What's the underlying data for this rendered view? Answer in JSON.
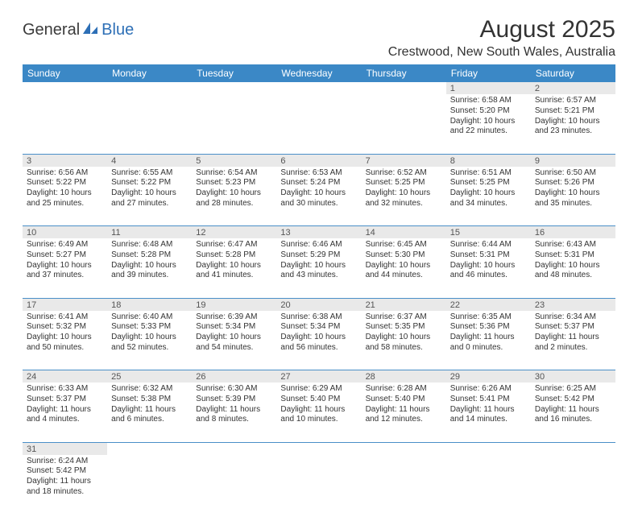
{
  "logo": {
    "part1": "General",
    "part2": "Blue"
  },
  "title": "August 2025",
  "location": "Crestwood, New South Wales, Australia",
  "colors": {
    "header_bg": "#3b88c6",
    "header_fg": "#ffffff",
    "row_rule": "#4a8fc8",
    "daynum_bg": "#e9e9e9",
    "logo_blue": "#2d6fb6"
  },
  "weekdays": [
    "Sunday",
    "Monday",
    "Tuesday",
    "Wednesday",
    "Thursday",
    "Friday",
    "Saturday"
  ],
  "weeks": [
    [
      null,
      null,
      null,
      null,
      null,
      {
        "n": "1",
        "sr": "Sunrise: 6:58 AM",
        "ss": "Sunset: 5:20 PM",
        "d1": "Daylight: 10 hours",
        "d2": "and 22 minutes."
      },
      {
        "n": "2",
        "sr": "Sunrise: 6:57 AM",
        "ss": "Sunset: 5:21 PM",
        "d1": "Daylight: 10 hours",
        "d2": "and 23 minutes."
      }
    ],
    [
      {
        "n": "3",
        "sr": "Sunrise: 6:56 AM",
        "ss": "Sunset: 5:22 PM",
        "d1": "Daylight: 10 hours",
        "d2": "and 25 minutes."
      },
      {
        "n": "4",
        "sr": "Sunrise: 6:55 AM",
        "ss": "Sunset: 5:22 PM",
        "d1": "Daylight: 10 hours",
        "d2": "and 27 minutes."
      },
      {
        "n": "5",
        "sr": "Sunrise: 6:54 AM",
        "ss": "Sunset: 5:23 PM",
        "d1": "Daylight: 10 hours",
        "d2": "and 28 minutes."
      },
      {
        "n": "6",
        "sr": "Sunrise: 6:53 AM",
        "ss": "Sunset: 5:24 PM",
        "d1": "Daylight: 10 hours",
        "d2": "and 30 minutes."
      },
      {
        "n": "7",
        "sr": "Sunrise: 6:52 AM",
        "ss": "Sunset: 5:25 PM",
        "d1": "Daylight: 10 hours",
        "d2": "and 32 minutes."
      },
      {
        "n": "8",
        "sr": "Sunrise: 6:51 AM",
        "ss": "Sunset: 5:25 PM",
        "d1": "Daylight: 10 hours",
        "d2": "and 34 minutes."
      },
      {
        "n": "9",
        "sr": "Sunrise: 6:50 AM",
        "ss": "Sunset: 5:26 PM",
        "d1": "Daylight: 10 hours",
        "d2": "and 35 minutes."
      }
    ],
    [
      {
        "n": "10",
        "sr": "Sunrise: 6:49 AM",
        "ss": "Sunset: 5:27 PM",
        "d1": "Daylight: 10 hours",
        "d2": "and 37 minutes."
      },
      {
        "n": "11",
        "sr": "Sunrise: 6:48 AM",
        "ss": "Sunset: 5:28 PM",
        "d1": "Daylight: 10 hours",
        "d2": "and 39 minutes."
      },
      {
        "n": "12",
        "sr": "Sunrise: 6:47 AM",
        "ss": "Sunset: 5:28 PM",
        "d1": "Daylight: 10 hours",
        "d2": "and 41 minutes."
      },
      {
        "n": "13",
        "sr": "Sunrise: 6:46 AM",
        "ss": "Sunset: 5:29 PM",
        "d1": "Daylight: 10 hours",
        "d2": "and 43 minutes."
      },
      {
        "n": "14",
        "sr": "Sunrise: 6:45 AM",
        "ss": "Sunset: 5:30 PM",
        "d1": "Daylight: 10 hours",
        "d2": "and 44 minutes."
      },
      {
        "n": "15",
        "sr": "Sunrise: 6:44 AM",
        "ss": "Sunset: 5:31 PM",
        "d1": "Daylight: 10 hours",
        "d2": "and 46 minutes."
      },
      {
        "n": "16",
        "sr": "Sunrise: 6:43 AM",
        "ss": "Sunset: 5:31 PM",
        "d1": "Daylight: 10 hours",
        "d2": "and 48 minutes."
      }
    ],
    [
      {
        "n": "17",
        "sr": "Sunrise: 6:41 AM",
        "ss": "Sunset: 5:32 PM",
        "d1": "Daylight: 10 hours",
        "d2": "and 50 minutes."
      },
      {
        "n": "18",
        "sr": "Sunrise: 6:40 AM",
        "ss": "Sunset: 5:33 PM",
        "d1": "Daylight: 10 hours",
        "d2": "and 52 minutes."
      },
      {
        "n": "19",
        "sr": "Sunrise: 6:39 AM",
        "ss": "Sunset: 5:34 PM",
        "d1": "Daylight: 10 hours",
        "d2": "and 54 minutes."
      },
      {
        "n": "20",
        "sr": "Sunrise: 6:38 AM",
        "ss": "Sunset: 5:34 PM",
        "d1": "Daylight: 10 hours",
        "d2": "and 56 minutes."
      },
      {
        "n": "21",
        "sr": "Sunrise: 6:37 AM",
        "ss": "Sunset: 5:35 PM",
        "d1": "Daylight: 10 hours",
        "d2": "and 58 minutes."
      },
      {
        "n": "22",
        "sr": "Sunrise: 6:35 AM",
        "ss": "Sunset: 5:36 PM",
        "d1": "Daylight: 11 hours",
        "d2": "and 0 minutes."
      },
      {
        "n": "23",
        "sr": "Sunrise: 6:34 AM",
        "ss": "Sunset: 5:37 PM",
        "d1": "Daylight: 11 hours",
        "d2": "and 2 minutes."
      }
    ],
    [
      {
        "n": "24",
        "sr": "Sunrise: 6:33 AM",
        "ss": "Sunset: 5:37 PM",
        "d1": "Daylight: 11 hours",
        "d2": "and 4 minutes."
      },
      {
        "n": "25",
        "sr": "Sunrise: 6:32 AM",
        "ss": "Sunset: 5:38 PM",
        "d1": "Daylight: 11 hours",
        "d2": "and 6 minutes."
      },
      {
        "n": "26",
        "sr": "Sunrise: 6:30 AM",
        "ss": "Sunset: 5:39 PM",
        "d1": "Daylight: 11 hours",
        "d2": "and 8 minutes."
      },
      {
        "n": "27",
        "sr": "Sunrise: 6:29 AM",
        "ss": "Sunset: 5:40 PM",
        "d1": "Daylight: 11 hours",
        "d2": "and 10 minutes."
      },
      {
        "n": "28",
        "sr": "Sunrise: 6:28 AM",
        "ss": "Sunset: 5:40 PM",
        "d1": "Daylight: 11 hours",
        "d2": "and 12 minutes."
      },
      {
        "n": "29",
        "sr": "Sunrise: 6:26 AM",
        "ss": "Sunset: 5:41 PM",
        "d1": "Daylight: 11 hours",
        "d2": "and 14 minutes."
      },
      {
        "n": "30",
        "sr": "Sunrise: 6:25 AM",
        "ss": "Sunset: 5:42 PM",
        "d1": "Daylight: 11 hours",
        "d2": "and 16 minutes."
      }
    ],
    [
      {
        "n": "31",
        "sr": "Sunrise: 6:24 AM",
        "ss": "Sunset: 5:42 PM",
        "d1": "Daylight: 11 hours",
        "d2": "and 18 minutes."
      },
      null,
      null,
      null,
      null,
      null,
      null
    ]
  ]
}
